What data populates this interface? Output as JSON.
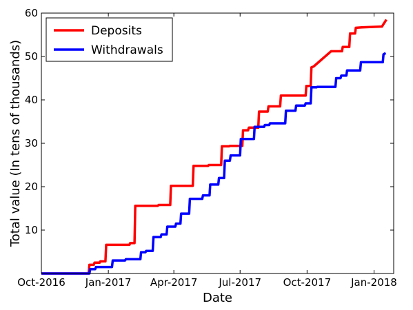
{
  "chart_data": {
    "type": "line",
    "title": "",
    "xlabel": "Date",
    "ylabel": "Total value (In tens of thousands)",
    "xlim": [
      "2016-10-01",
      "2018-01-28"
    ],
    "ylim": [
      0,
      60
    ],
    "x_ticks": [
      {
        "date": "2016-10-01",
        "label": "Oct-2016"
      },
      {
        "date": "2017-01-01",
        "label": "Jan-2017"
      },
      {
        "date": "2017-04-01",
        "label": "Apr-2017"
      },
      {
        "date": "2017-07-01",
        "label": "Jul-2017"
      },
      {
        "date": "2017-10-01",
        "label": "Oct-2017"
      },
      {
        "date": "2018-01-01",
        "label": "Jan-2018"
      }
    ],
    "y_ticks": [
      {
        "value": 10,
        "label": "10"
      },
      {
        "value": 20,
        "label": "20"
      },
      {
        "value": 30,
        "label": "30"
      },
      {
        "value": 40,
        "label": "40"
      },
      {
        "value": 50,
        "label": "50"
      },
      {
        "value": 60,
        "label": "60"
      }
    ],
    "grid": false,
    "legend_position": "top-left",
    "series": [
      {
        "name": "Deposits",
        "color": "#ff0000",
        "x": [
          "2016-10-01",
          "2016-12-05",
          "2016-12-06",
          "2016-12-12",
          "2016-12-13",
          "2016-12-20",
          "2016-12-21",
          "2016-12-28",
          "2016-12-29",
          "2017-01-30",
          "2017-01-31",
          "2017-02-06",
          "2017-02-07",
          "2017-03-10",
          "2017-03-11",
          "2017-03-27",
          "2017-03-28",
          "2017-04-27",
          "2017-04-28",
          "2017-05-18",
          "2017-05-19",
          "2017-06-05",
          "2017-06-06",
          "2017-06-16",
          "2017-06-17",
          "2017-07-04",
          "2017-07-05",
          "2017-07-12",
          "2017-07-13",
          "2017-07-26",
          "2017-07-27",
          "2017-08-08",
          "2017-08-09",
          "2017-08-25",
          "2017-08-26",
          "2017-09-29",
          "2017-09-30",
          "2017-10-06",
          "2017-10-07",
          "2017-10-10",
          "2017-11-03",
          "2017-11-18",
          "2017-11-19",
          "2017-11-28",
          "2017-11-29",
          "2017-12-06",
          "2017-12-07",
          "2017-12-15",
          "2018-01-12",
          "2018-01-13",
          "2018-01-18"
        ],
        "values": [
          0,
          0,
          2.0,
          2.0,
          2.5,
          2.5,
          2.8,
          2.8,
          6.6,
          6.6,
          7.0,
          7.0,
          15.6,
          15.6,
          15.8,
          15.8,
          20.2,
          20.2,
          24.8,
          24.8,
          25.0,
          25.0,
          29.3,
          29.3,
          29.4,
          29.4,
          33.0,
          33.0,
          33.6,
          33.6,
          37.3,
          37.3,
          38.5,
          38.5,
          41.0,
          41.0,
          43.2,
          43.2,
          47.5,
          47.7,
          51.2,
          51.2,
          52.2,
          52.2,
          55.3,
          55.3,
          56.6,
          56.7,
          56.9,
          57.2,
          58.5
        ]
      },
      {
        "name": "Withdrawals",
        "color": "#0000ff",
        "x": [
          "2016-10-01",
          "2016-12-06",
          "2016-12-07",
          "2016-12-14",
          "2016-12-15",
          "2017-01-06",
          "2017-01-07",
          "2017-01-24",
          "2017-01-25",
          "2017-02-14",
          "2017-02-15",
          "2017-02-21",
          "2017-02-22",
          "2017-03-03",
          "2017-03-04",
          "2017-03-14",
          "2017-03-15",
          "2017-03-22",
          "2017-03-23",
          "2017-04-03",
          "2017-04-04",
          "2017-04-10",
          "2017-04-11",
          "2017-04-22",
          "2017-04-23",
          "2017-05-10",
          "2017-05-11",
          "2017-05-20",
          "2017-05-21",
          "2017-06-01",
          "2017-06-02",
          "2017-06-09",
          "2017-06-10",
          "2017-06-17",
          "2017-06-18",
          "2017-07-01",
          "2017-07-02",
          "2017-07-20",
          "2017-07-21",
          "2017-08-03",
          "2017-08-04",
          "2017-08-10",
          "2017-08-11",
          "2017-09-01",
          "2017-09-02",
          "2017-09-15",
          "2017-09-16",
          "2017-09-28",
          "2017-09-29",
          "2017-10-06",
          "2017-10-07",
          "2017-10-14",
          "2017-10-15",
          "2017-11-09",
          "2017-11-10",
          "2017-11-16",
          "2017-11-17",
          "2017-11-24",
          "2017-11-25",
          "2017-12-13",
          "2017-12-14",
          "2018-01-13",
          "2018-01-14",
          "2018-01-17"
        ],
        "values": [
          0,
          0,
          1.0,
          1.0,
          1.5,
          1.5,
          3.0,
          3.0,
          3.3,
          3.3,
          4.9,
          4.9,
          5.2,
          5.2,
          8.4,
          8.4,
          9.0,
          9.0,
          10.8,
          10.8,
          11.5,
          11.5,
          13.8,
          13.8,
          17.2,
          17.2,
          18.0,
          18.0,
          20.5,
          20.5,
          22.0,
          22.0,
          26.0,
          26.0,
          27.2,
          27.2,
          31.0,
          31.0,
          33.8,
          33.8,
          34.2,
          34.2,
          34.6,
          34.6,
          37.5,
          37.5,
          38.7,
          38.7,
          39.2,
          39.2,
          42.9,
          42.9,
          43.0,
          43.0,
          45.0,
          45.0,
          45.6,
          45.6,
          46.8,
          46.8,
          48.7,
          48.7,
          50.5,
          50.8
        ]
      }
    ]
  }
}
